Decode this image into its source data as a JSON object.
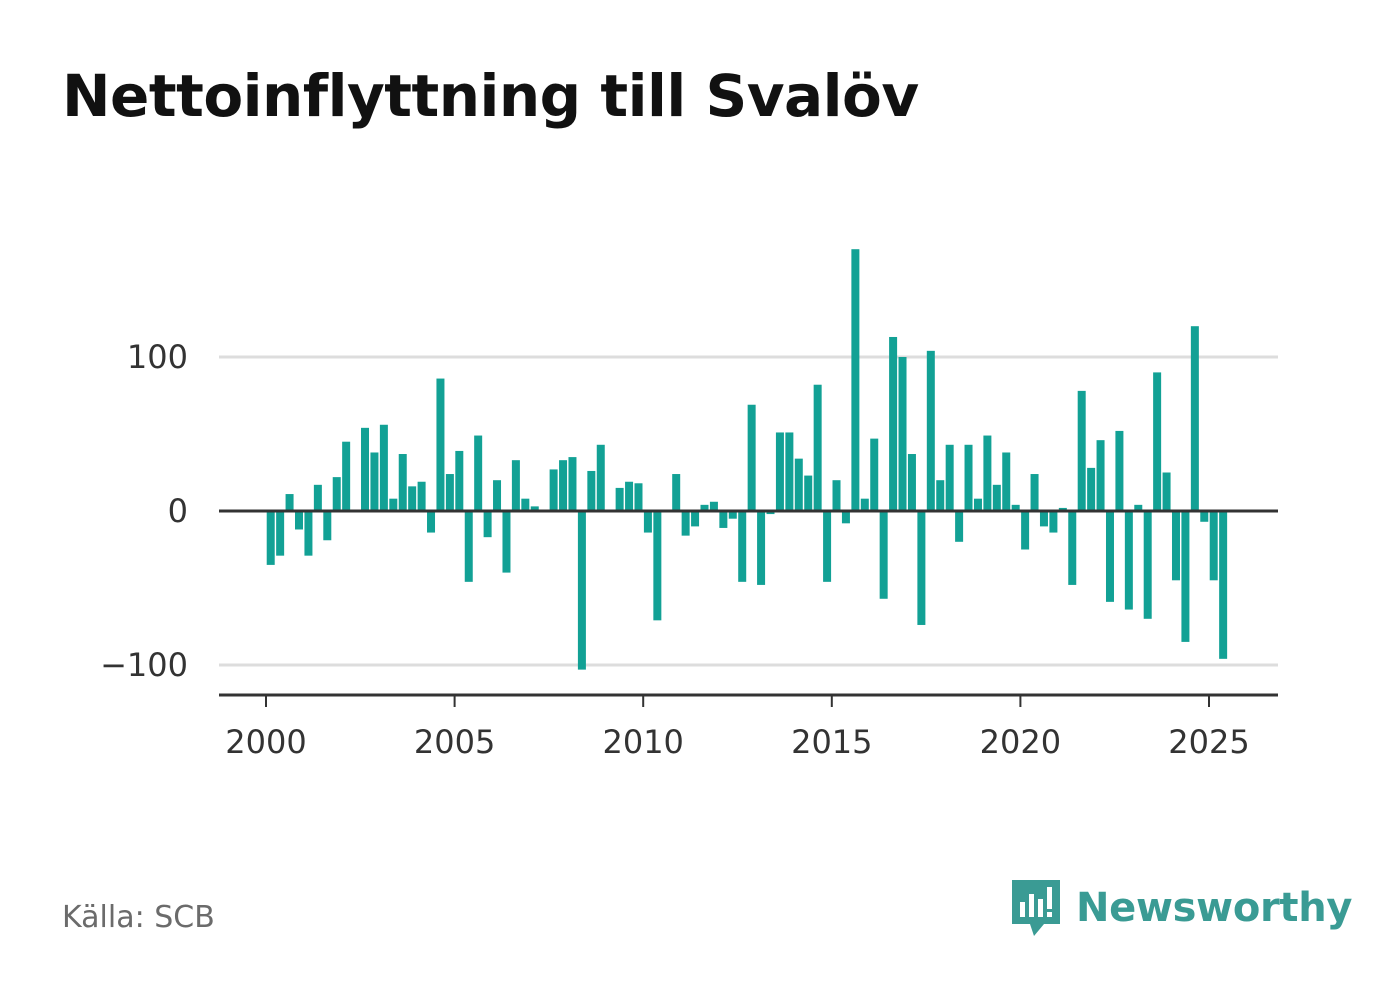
{
  "title": "Nettoinflyttning till Svalöv",
  "source": "Källa: SCB",
  "brand": {
    "name": "Newsworthy",
    "icon": "newsworthy-logo-icon",
    "color": "#3a9b94"
  },
  "colors": {
    "bar": "#12a195",
    "grid": "#dddddd",
    "axis": "#333333"
  },
  "chart_data": {
    "type": "bar",
    "title": "Nettoinflyttning till Svalöv",
    "xlabel": "",
    "ylabel": "",
    "x_ticks": [
      "2000",
      "2005",
      "2010",
      "2015",
      "2020",
      "2025"
    ],
    "y_ticks": [
      {
        "value": 100,
        "label": "100"
      },
      {
        "value": 0,
        "label": "0"
      },
      {
        "value": -100,
        "label": "−100"
      }
    ],
    "xlim": [
      1998.75,
      2026.85
    ],
    "ylim": [
      -120,
      175
    ],
    "grid": true,
    "legend": "none",
    "x": [
      2000.125,
      2000.375,
      2000.625,
      2000.875,
      2001.125,
      2001.375,
      2001.625,
      2001.875,
      2002.125,
      2002.375,
      2002.625,
      2002.875,
      2003.125,
      2003.375,
      2003.625,
      2003.875,
      2004.125,
      2004.375,
      2004.625,
      2004.875,
      2005.125,
      2005.375,
      2005.625,
      2005.875,
      2006.125,
      2006.375,
      2006.625,
      2006.875,
      2007.125,
      2007.375,
      2007.625,
      2007.875,
      2008.125,
      2008.375,
      2008.625,
      2008.875,
      2009.125,
      2009.375,
      2009.625,
      2009.875,
      2010.125,
      2010.375,
      2010.625,
      2010.875,
      2011.125,
      2011.375,
      2011.625,
      2011.875,
      2012.125,
      2012.375,
      2012.625,
      2012.875,
      2013.125,
      2013.375,
      2013.625,
      2013.875,
      2014.125,
      2014.375,
      2014.625,
      2014.875,
      2015.125,
      2015.375,
      2015.625,
      2015.875,
      2016.125,
      2016.375,
      2016.625,
      2016.875,
      2017.125,
      2017.375,
      2017.625,
      2017.875,
      2018.125,
      2018.375,
      2018.625,
      2018.875,
      2019.125,
      2019.375,
      2019.625,
      2019.875,
      2020.125,
      2020.375,
      2020.625,
      2020.875,
      2021.125,
      2021.375,
      2021.625,
      2021.875,
      2022.125,
      2022.375,
      2022.625,
      2022.875,
      2023.125,
      2023.375,
      2023.625,
      2023.875,
      2024.125,
      2024.375,
      2024.625,
      2024.875,
      2025.125,
      2025.375
    ],
    "values": [
      -35,
      -29,
      11,
      -12,
      -29,
      17,
      -19,
      22,
      45,
      0,
      54,
      38,
      56,
      8,
      37,
      16,
      19,
      -14,
      86,
      24,
      39,
      -46,
      49,
      -17,
      20,
      -40,
      33,
      8,
      3,
      0,
      27,
      33,
      35,
      -103,
      26,
      43,
      0,
      15,
      19,
      18,
      -14,
      -71,
      0,
      24,
      -16,
      -10,
      4,
      6,
      -11,
      -5,
      -46,
      69,
      -48,
      -2,
      51,
      51,
      34,
      23,
      82,
      -46,
      20,
      -8,
      170,
      8,
      47,
      -57,
      113,
      100,
      37,
      -74,
      104,
      20,
      43,
      -20,
      43,
      8,
      49,
      17,
      38,
      4,
      -25,
      24,
      -10,
      -14,
      2,
      -48,
      78,
      28,
      46,
      -59,
      52,
      -64,
      4,
      -70,
      90,
      25,
      -45,
      -85,
      120,
      -7,
      -45,
      -96
    ]
  }
}
